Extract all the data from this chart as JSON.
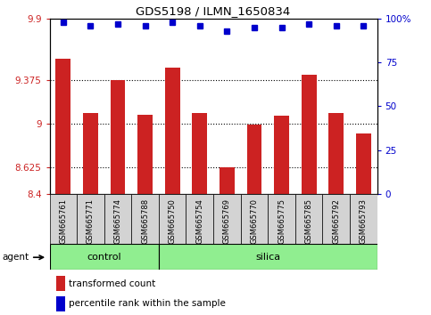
{
  "title": "GDS5198 / ILMN_1650834",
  "samples": [
    "GSM665761",
    "GSM665771",
    "GSM665774",
    "GSM665788",
    "GSM665750",
    "GSM665754",
    "GSM665769",
    "GSM665770",
    "GSM665775",
    "GSM665785",
    "GSM665792",
    "GSM665793"
  ],
  "bar_values": [
    9.56,
    9.09,
    9.375,
    9.08,
    9.48,
    9.09,
    8.63,
    8.99,
    9.07,
    9.42,
    9.09,
    8.92
  ],
  "percentile_values": [
    98,
    96,
    97,
    96,
    98,
    96,
    93,
    95,
    95,
    97,
    96,
    96
  ],
  "ylim_left": [
    8.4,
    9.9
  ],
  "ylim_right": [
    0,
    100
  ],
  "yticks_left": [
    8.4,
    8.625,
    9.0,
    9.375,
    9.9
  ],
  "ytick_labels_left": [
    "8.4",
    "8.625",
    "9",
    "9.375",
    "9.9"
  ],
  "yticks_right": [
    0,
    25,
    50,
    75,
    100
  ],
  "ytick_labels_right": [
    "0",
    "25",
    "50",
    "75",
    "100%"
  ],
  "hlines": [
    8.625,
    9.0,
    9.375
  ],
  "bar_color": "#CC2222",
  "point_color": "#0000CC",
  "tick_bg_color": "#D3D3D3",
  "group_color": "#90EE90",
  "legend_red_label": "transformed count",
  "legend_blue_label": "percentile rank within the sample",
  "agent_label": "agent",
  "control_label": "control",
  "silica_label": "silica",
  "n_control": 4,
  "n_silica": 8
}
